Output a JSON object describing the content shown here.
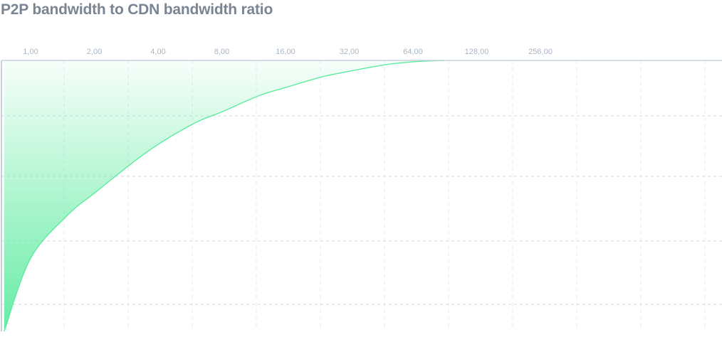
{
  "title": "P2P bandwidth to CDN bandwidth ratio",
  "chart_data": {
    "type": "area",
    "title": "P2P bandwidth to CDN bandwidth ratio",
    "x_scale": "log2",
    "x_tick_labels": [
      "1,00",
      "2,00",
      "4,00",
      "8,00",
      "16,00",
      "32,00",
      "64,00",
      "128,00",
      "256,00"
    ],
    "x_ticks": [
      1,
      2,
      4,
      8,
      16,
      32,
      64,
      128,
      256
    ],
    "series": [
      {
        "color": "#5eeba0",
        "x": [
          0.75,
          1,
          1.5,
          2,
          3,
          4,
          6,
          8,
          12,
          16,
          24,
          32,
          48,
          64,
          90
        ],
        "y": [
          0.0,
          0.27,
          0.43,
          0.51,
          0.62,
          0.69,
          0.77,
          0.81,
          0.87,
          0.9,
          0.94,
          0.96,
          0.985,
          0.995,
          1.0
        ]
      }
    ],
    "y_range": [
      0,
      1
    ],
    "grid": true,
    "colors": {
      "line": "#5eeba0",
      "fill": "#5eeba0",
      "axis": "#c6d0db",
      "grid": "#d2d8e0",
      "ticks": "#a9b6c6"
    }
  }
}
